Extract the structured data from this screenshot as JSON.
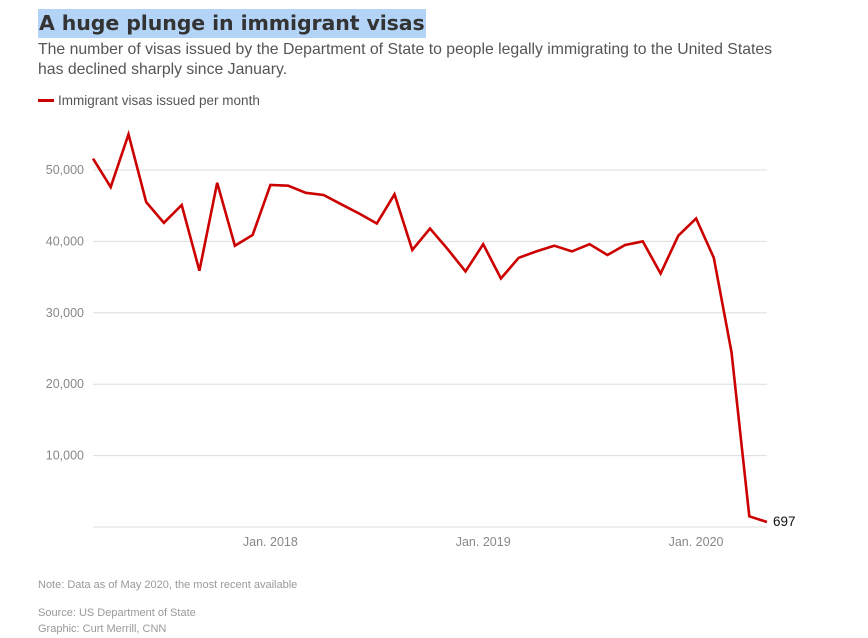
{
  "header": {
    "title": "A huge plunge in immigrant visas",
    "subtitle": "The number of visas issued by the Department of State to people legally immigrating to the United States has declined sharply since January."
  },
  "colors": {
    "series": "#cc0000",
    "title_highlight": "#b3d4f7",
    "grid": "#dddddd"
  },
  "footer": {
    "note": "Note: Data as of May 2020, the most recent available",
    "source": "Source: US Department of State",
    "credit": "Graphic: Curt Merrill, CNN"
  },
  "chart_data": {
    "type": "line",
    "title": "A huge plunge in immigrant visas",
    "xlabel": "",
    "ylabel": "",
    "grid": true,
    "legend": "top-left",
    "series": [
      {
        "name": "Immigrant visas issued per month",
        "x": [
          "2017-03",
          "2017-04",
          "2017-05",
          "2017-06",
          "2017-07",
          "2017-08",
          "2017-09",
          "2017-10",
          "2017-11",
          "2017-12",
          "2018-01",
          "2018-02",
          "2018-03",
          "2018-04",
          "2018-05",
          "2018-06",
          "2018-07",
          "2018-08",
          "2018-09",
          "2018-10",
          "2018-11",
          "2018-12",
          "2019-01",
          "2019-02",
          "2019-03",
          "2019-04",
          "2019-05",
          "2019-06",
          "2019-07",
          "2019-08",
          "2019-09",
          "2019-10",
          "2019-11",
          "2019-12",
          "2020-01",
          "2020-02",
          "2020-03",
          "2020-04",
          "2020-05"
        ],
        "values": [
          51600,
          47600,
          55000,
          45500,
          42600,
          45100,
          35900,
          48200,
          39400,
          40900,
          47900,
          47800,
          46800,
          46500,
          45200,
          43900,
          42500,
          46600,
          38800,
          41800,
          38900,
          35800,
          39600,
          34800,
          37700,
          38600,
          39400,
          38600,
          39600,
          38100,
          39500,
          40000,
          35500,
          40800,
          43200,
          37700,
          24500,
          1500,
          697
        ]
      }
    ],
    "ylim": [
      0,
      57000
    ],
    "yticks": [
      10000,
      20000,
      30000,
      40000,
      50000
    ],
    "ytick_labels": [
      "10,000",
      "20,000",
      "30,000",
      "40,000",
      "50,000"
    ],
    "xticks": [
      {
        "at": "2018-01",
        "label": "Jan. 2018"
      },
      {
        "at": "2019-01",
        "label": "Jan. 2019"
      },
      {
        "at": "2020-01",
        "label": "Jan. 2020"
      }
    ],
    "annotations": [
      {
        "at": "2020-05",
        "text": "697"
      }
    ]
  }
}
